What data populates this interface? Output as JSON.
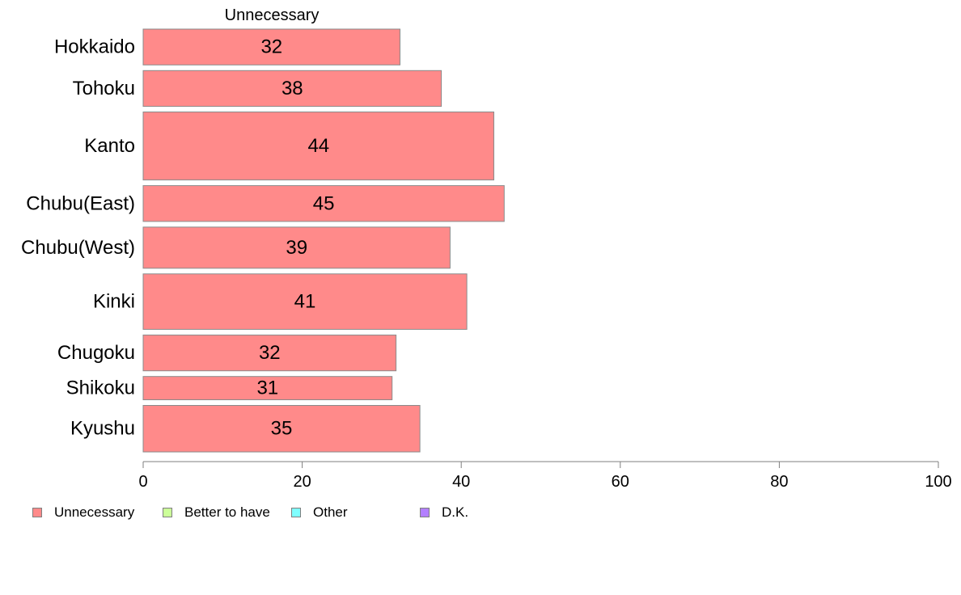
{
  "chart_data": {
    "type": "bar",
    "orientation": "horizontal",
    "column_title": "Unnecessary",
    "categories": [
      "Hokkaido",
      "Tohoku",
      "Kanto",
      "Chubu(East)",
      "Chubu(West)",
      "Kinki",
      "Chugoku",
      "Shikoku",
      "Kyushu"
    ],
    "series": [
      {
        "name": "Unnecessary",
        "color": "#ff8a8a",
        "values": [
          32.3,
          37.5,
          44.1,
          45.4,
          38.6,
          40.7,
          31.8,
          31.3,
          34.8
        ],
        "labels": [
          "32",
          "38",
          "44",
          "45",
          "39",
          "41",
          "32",
          "31",
          "35"
        ]
      }
    ],
    "bar_weights": [
      1.0,
      1.0,
      1.9,
      1.0,
      1.15,
      1.55,
      1.0,
      0.65,
      1.3
    ],
    "xlim": [
      0,
      100
    ],
    "xticks": [
      "0",
      "20",
      "40",
      "60",
      "80",
      "100"
    ],
    "grid": false,
    "legend_position": "bottom-left",
    "legend": [
      {
        "label": "Unnecessary",
        "color": "#ff8a8a"
      },
      {
        "label": "Better to have",
        "color": "#ccff99"
      },
      {
        "label": "Other",
        "color": "#80ffff"
      },
      {
        "label": "D.K.",
        "color": "#b380ff"
      }
    ]
  }
}
